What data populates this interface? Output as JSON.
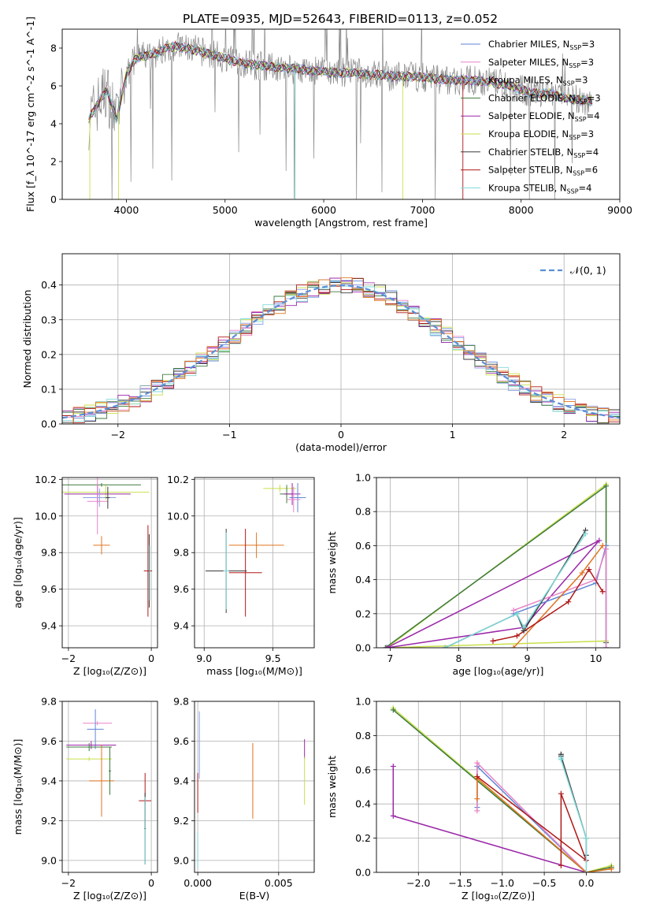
{
  "title": "PLATE=0935, MJD=52643, FIBERID=0113, z=0.052",
  "colors": {
    "chabrier_miles": "#5f86d6",
    "salpeter_miles": "#e884c8",
    "kroupa_miles": "#8fa0e8",
    "chabrier_elodie": "#3d7a3d",
    "salpeter_elodie": "#9b27a8",
    "kroupa_elodie": "#c9df4a",
    "chabrier_stelib": "#3a3a3a",
    "salpeter_stelib": "#b01818",
    "kroupa_stelib": "#7fdada",
    "orange": "#e0731e",
    "spectrum": "#888888",
    "normal": "#5a8fd6"
  },
  "chart_data": [
    {
      "id": "spectrum",
      "type": "line",
      "xlabel": "wavelength [Angstrom, rest frame]",
      "ylabel": "Flux [f_λ 10^-17 erg cm^-2 s^-1 A^-1]",
      "xlim": [
        3350,
        9000
      ],
      "ylim": [
        0,
        9
      ],
      "xticks": [
        "4000",
        "5000",
        "6000",
        "7000",
        "8000",
        "9000"
      ],
      "yticks": [
        "0",
        "2",
        "4",
        "6",
        "8"
      ],
      "grid": false,
      "legend_position": "upper-right",
      "series_x": [
        3620,
        3700,
        3800,
        3900,
        4000,
        4100,
        4200,
        4300,
        4400,
        4500,
        4700,
        4900,
        5100,
        5300,
        5500,
        5700,
        5900,
        6100,
        6300,
        6500,
        6700,
        6900,
        7100,
        7300,
        7500,
        7700,
        7900,
        8100,
        8300,
        8500,
        8700
      ],
      "series_y": [
        4.2,
        5.0,
        5.8,
        4.2,
        6.6,
        7.5,
        7.6,
        7.7,
        8.0,
        8.1,
        7.9,
        7.6,
        7.3,
        7.1,
        7.0,
        6.9,
        6.8,
        6.7,
        6.7,
        6.6,
        6.5,
        6.5,
        6.4,
        6.3,
        6.3,
        6.2,
        6.0,
        5.6,
        5.6,
        5.3,
        5.2
      ],
      "legend": [
        {
          "label": "Chabrier MILES, N",
          "sub": "SSP",
          "val": "=3",
          "color": "chabrier_miles"
        },
        {
          "label": "Salpeter MILES, N",
          "sub": "SSP",
          "val": "=3",
          "color": "salpeter_miles"
        },
        {
          "label": "Kroupa MILES, N",
          "sub": "SSP",
          "val": "=3",
          "color": "kroupa_miles"
        },
        {
          "label": "Chabrier ELODIE, N",
          "sub": "SSP",
          "val": "=3",
          "color": "chabrier_elodie"
        },
        {
          "label": "Salpeter ELODIE, N",
          "sub": "SSP",
          "val": "=4",
          "color": "salpeter_elodie"
        },
        {
          "label": "Kroupa ELODIE, N",
          "sub": "SSP",
          "val": "=3",
          "color": "kroupa_elodie"
        },
        {
          "label": "Chabrier STELIB, N",
          "sub": "SSP",
          "val": "=4",
          "color": "chabrier_stelib"
        },
        {
          "label": "Salpeter STELIB, N",
          "sub": "SSP",
          "val": "=6",
          "color": "salpeter_stelib"
        },
        {
          "label": "Kroupa STELIB, N",
          "sub": "SSP",
          "val": "=4",
          "color": "kroupa_stelib"
        }
      ]
    },
    {
      "id": "histogram",
      "type": "bar",
      "xlabel": "(data-model)/error",
      "ylabel": "Normed distribution",
      "xlim": [
        -2.5,
        2.5
      ],
      "ylim": [
        0,
        0.49
      ],
      "xticks": [
        "−2",
        "−1",
        "0",
        "1",
        "2"
      ],
      "yticks": [
        "0.0",
        "0.1",
        "0.2",
        "0.3",
        "0.4"
      ],
      "grid": true,
      "legend_label": "𝒩(0, 1)",
      "bin_width": 0.1,
      "bin_start": -2.5,
      "legend_position": "upper-right"
    },
    {
      "id": "age_vs_Z",
      "type": "scatter",
      "xlabel": "Z [log₁₀(Z/Z⊙)]",
      "ylabel": "age  [log₁₀(age/yr)]",
      "xlim": [
        -2.15,
        0.15
      ],
      "ylim": [
        9.28,
        10.21
      ],
      "xticks": [
        "−2",
        "0"
      ],
      "yticks": [
        "9.4",
        "9.6",
        "9.8",
        "10.0",
        "10.2"
      ],
      "grid": true,
      "points": [
        {
          "x": -1.1,
          "y": 10.13,
          "xerr": 1.05,
          "yerr": 0.04,
          "color": "kroupa_elodie"
        },
        {
          "x": -1.2,
          "y": 10.17,
          "xerr": 0.95,
          "yerr": 0.01,
          "color": "chabrier_elodie"
        },
        {
          "x": -1.3,
          "y": 10.12,
          "xerr": 0.8,
          "yerr": 0.05,
          "color": "salpeter_elodie"
        },
        {
          "x": -1.25,
          "y": 10.1,
          "xerr": 0.4,
          "yerr": 0.05,
          "color": "kroupa_miles"
        },
        {
          "x": -1.3,
          "y": 10.08,
          "xerr": 0.25,
          "yerr": 0.18,
          "color": "salpeter_miles"
        },
        {
          "x": -1.05,
          "y": 10.1,
          "xerr": 0.05,
          "yerr": 0.06,
          "color": "chabrier_stelib"
        },
        {
          "x": -1.2,
          "y": 9.84,
          "xerr": 0.2,
          "yerr": 0.05,
          "color": "orange"
        },
        {
          "x": -0.08,
          "y": 9.7,
          "xerr": 0.1,
          "yerr": 0.25,
          "color": "salpeter_stelib"
        },
        {
          "x": -0.05,
          "y": 9.7,
          "xerr": 0.02,
          "yerr": 0.2,
          "color": "chabrier_stelib"
        },
        {
          "x": -0.04,
          "y": 9.69,
          "xerr": 0.01,
          "yerr": 0.15,
          "color": "kroupa_stelib"
        }
      ]
    },
    {
      "id": "age_vs_mass",
      "type": "scatter",
      "xlabel": "mass [log₁₀(M/M⊙)]",
      "ylabel": "",
      "xlim": [
        8.93,
        9.8
      ],
      "ylim": [
        9.28,
        10.21
      ],
      "xticks": [
        "9.0",
        "9.5"
      ],
      "yticks": [
        "9.4",
        "9.6",
        "9.8",
        "10.0",
        "10.2"
      ],
      "grid": true,
      "points": [
        {
          "x": 9.55,
          "y": 10.15,
          "xerr": 0.12,
          "yerr": 0.02,
          "color": "kroupa_elodie"
        },
        {
          "x": 9.6,
          "y": 10.12,
          "xerr": 0.05,
          "yerr": 0.05,
          "color": "chabrier_elodie"
        },
        {
          "x": 9.64,
          "y": 10.12,
          "xerr": 0.06,
          "yerr": 0.06,
          "color": "salpeter_elodie"
        },
        {
          "x": 9.68,
          "y": 10.1,
          "xerr": 0.06,
          "yerr": 0.08,
          "color": "chabrier_miles"
        },
        {
          "x": 9.65,
          "y": 10.09,
          "xerr": 0.05,
          "yerr": 0.07,
          "color": "salpeter_miles"
        },
        {
          "x": 9.38,
          "y": 9.84,
          "xerr": 0.2,
          "yerr": 0.07,
          "color": "orange"
        },
        {
          "x": 9.3,
          "y": 9.69,
          "xerr": 0.12,
          "yerr": 0.24,
          "color": "salpeter_stelib"
        },
        {
          "x": 9.16,
          "y": 9.7,
          "xerr": 0.15,
          "yerr": 0.23,
          "color": "chabrier_stelib"
        },
        {
          "x": 9.16,
          "y": 9.7,
          "xerr": 0.02,
          "yerr": 0.21,
          "color": "kroupa_stelib"
        }
      ]
    },
    {
      "id": "weight_vs_age",
      "type": "line",
      "xlabel": "age  [log₁₀(age/yr)]",
      "ylabel": "mass weight",
      "xlim": [
        6.8,
        10.35
      ],
      "ylim": [
        0,
        1
      ],
      "xticks": [
        "7",
        "8",
        "9",
        "10"
      ],
      "yticks": [
        "0.0",
        "0.2",
        "0.4",
        "0.6",
        "0.8",
        "1.0"
      ],
      "grid": true,
      "series": [
        {
          "color": "kroupa_elodie",
          "x": [
            6.95,
            10.15,
            10.15,
            6.95
          ],
          "y": [
            0.0,
            0.96,
            0.04,
            0.0
          ]
        },
        {
          "color": "chabrier_elodie",
          "x": [
            6.93,
            10.15,
            10.15
          ],
          "y": [
            0.0,
            0.95,
            0.03
          ]
        },
        {
          "color": "salpeter_elodie",
          "x": [
            6.95,
            10.05,
            8.95,
            6.95
          ],
          "y": [
            0.0,
            0.63,
            0.12,
            0.0
          ]
        },
        {
          "color": "chabrier_miles",
          "x": [
            8.8,
            10.0,
            10.15,
            10.15
          ],
          "y": [
            0.2,
            0.38,
            0.6,
            0.0
          ]
        },
        {
          "color": "salpeter_miles",
          "x": [
            8.8,
            10.0,
            10.15,
            10.15
          ],
          "y": [
            0.22,
            0.4,
            0.58,
            0.0
          ]
        },
        {
          "color": "orange",
          "x": [
            8.8,
            9.8,
            10.1
          ],
          "y": [
            0.0,
            0.44,
            0.6
          ]
        },
        {
          "color": "salpeter_stelib",
          "x": [
            8.5,
            8.85,
            9.6,
            9.9,
            10.1
          ],
          "y": [
            0.04,
            0.07,
            0.27,
            0.46,
            0.33
          ]
        },
        {
          "color": "chabrier_stelib",
          "x": [
            7.8,
            8.85,
            8.95,
            9.85
          ],
          "y": [
            0.0,
            0.2,
            0.1,
            0.69
          ]
        },
        {
          "color": "kroupa_stelib",
          "x": [
            7.8,
            8.85,
            8.95,
            9.85
          ],
          "y": [
            0.0,
            0.2,
            0.12,
            0.67
          ]
        }
      ]
    },
    {
      "id": "mass_vs_Z",
      "type": "scatter",
      "xlabel": "Z [log₁₀(Z/Z⊙)]",
      "ylabel": "mass [log₁₀(M/M⊙)]",
      "xlim": [
        -2.15,
        0.15
      ],
      "ylim": [
        8.94,
        9.8
      ],
      "xticks": [
        "−2",
        "0"
      ],
      "yticks": [
        "9.0",
        "9.2",
        "9.4",
        "9.6",
        "9.8"
      ],
      "grid": true,
      "points": [
        {
          "x": -1.3,
          "y": 9.69,
          "xerr": 0.35,
          "yerr": 0.01,
          "color": "salpeter_miles"
        },
        {
          "x": -1.35,
          "y": 9.66,
          "xerr": 0.2,
          "yerr": 0.1,
          "color": "chabrier_miles"
        },
        {
          "x": -1.45,
          "y": 9.58,
          "xerr": 0.6,
          "yerr": 0.02,
          "color": "salpeter_elodie"
        },
        {
          "x": -1.5,
          "y": 9.57,
          "xerr": 0.55,
          "yerr": 0.02,
          "color": "chabrier_elodie"
        },
        {
          "x": -1.5,
          "y": 9.51,
          "xerr": 0.55,
          "yerr": 0.01,
          "color": "kroupa_elodie"
        },
        {
          "x": -1.2,
          "y": 9.4,
          "xerr": 0.3,
          "yerr": 0.18,
          "color": "orange"
        },
        {
          "x": -1.0,
          "y": 9.45,
          "xerr": 0.03,
          "yerr": 0.12,
          "color": "chabrier_elodie"
        },
        {
          "x": -0.15,
          "y": 9.3,
          "xerr": 0.15,
          "yerr": 0.14,
          "color": "salpeter_stelib"
        },
        {
          "x": -0.15,
          "y": 9.16,
          "xerr": 0.02,
          "yerr": 0.18,
          "color": "chabrier_stelib"
        },
        {
          "x": -0.15,
          "y": 9.15,
          "xerr": 0.01,
          "yerr": 0.17,
          "color": "kroupa_stelib"
        }
      ]
    },
    {
      "id": "mass_vs_EBV",
      "type": "scatter",
      "xlabel": "E(B-V)",
      "ylabel": "",
      "xlim": [
        -0.0002,
        0.0072
      ],
      "ylim": [
        8.94,
        9.8
      ],
      "xticks": [
        "0.000",
        "0.005"
      ],
      "yticks": [
        "9.0",
        "9.2",
        "9.4",
        "9.6",
        "9.8"
      ],
      "grid": true,
      "points": [
        {
          "x": 0.0001,
          "y": 9.58,
          "xerr": 0.0,
          "yerr": 0.17,
          "color": "kroupa_miles"
        },
        {
          "x": 0.0,
          "y": 9.34,
          "xerr": 0.0,
          "yerr": 0.1,
          "color": "salpeter_stelib"
        },
        {
          "x": 0.0,
          "y": 9.05,
          "xerr": 0.0,
          "yerr": 0.09,
          "color": "kroupa_stelib"
        },
        {
          "x": 0.0034,
          "y": 9.4,
          "xerr": 0.0,
          "yerr": 0.19,
          "color": "orange"
        },
        {
          "x": 0.0066,
          "y": 9.56,
          "xerr": 0.0,
          "yerr": 0.05,
          "color": "salpeter_elodie"
        },
        {
          "x": 0.0066,
          "y": 9.4,
          "xerr": 0.0,
          "yerr": 0.12,
          "color": "kroupa_elodie"
        }
      ]
    },
    {
      "id": "weight_vs_Z",
      "type": "line",
      "xlabel": "Z [log₁₀(Z/Z⊙)]",
      "ylabel": "mass weight",
      "xlim": [
        -2.5,
        0.4
      ],
      "ylim": [
        0,
        1
      ],
      "xticks": [
        "−2.0",
        "−1.5",
        "−1.0",
        "−0.5",
        "0.0"
      ],
      "yticks": [
        "0.0",
        "0.2",
        "0.4",
        "0.6",
        "0.8",
        "1.0"
      ],
      "grid": true,
      "series": [
        {
          "color": "kroupa_elodie",
          "x": [
            -2.3,
            0.0,
            0.3
          ],
          "y": [
            0.96,
            0.0,
            0.04
          ]
        },
        {
          "color": "chabrier_elodie",
          "x": [
            -2.3,
            0.0,
            0.3
          ],
          "y": [
            0.95,
            0.0,
            0.03
          ]
        },
        {
          "color": "salpeter_elodie",
          "x": [
            -2.3,
            -2.3,
            0.0
          ],
          "y": [
            0.62,
            0.33,
            0.0
          ]
        },
        {
          "color": "chabrier_miles",
          "x": [
            -1.3,
            -1.3,
            0.0,
            0.0
          ],
          "y": [
            0.38,
            0.62,
            0.0,
            0.0
          ]
        },
        {
          "color": "salpeter_miles",
          "x": [
            -1.3,
            -1.3,
            0.0,
            0.0
          ],
          "y": [
            0.36,
            0.64,
            0.0,
            0.0
          ]
        },
        {
          "color": "orange",
          "x": [
            -1.3,
            -1.3,
            0.0,
            0.3
          ],
          "y": [
            0.43,
            0.55,
            0.0,
            0.02
          ]
        },
        {
          "color": "salpeter_stelib",
          "x": [
            -0.3,
            -0.3,
            0.0,
            -1.3
          ],
          "y": [
            0.04,
            0.46,
            0.07,
            0.56
          ]
        },
        {
          "color": "chabrier_stelib",
          "x": [
            -0.3,
            -0.3,
            0.0,
            0.0
          ],
          "y": [
            0.69,
            0.68,
            0.2,
            0.1
          ]
        },
        {
          "color": "kroupa_stelib",
          "x": [
            -0.3,
            -0.3,
            0.0,
            0.0
          ],
          "y": [
            0.67,
            0.66,
            0.2,
            0.0
          ]
        }
      ]
    }
  ]
}
